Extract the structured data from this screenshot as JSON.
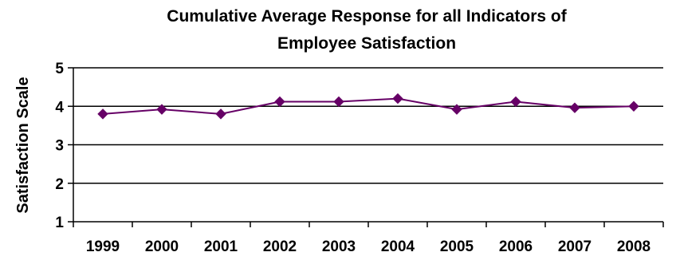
{
  "chart_data": {
    "type": "line",
    "title_lines": [
      "Cumulative Average Response for all Indicators of",
      "Employee Satisfaction"
    ],
    "xlabel": "",
    "ylabel": "Satisfaction Scale",
    "categories": [
      "1999",
      "2000",
      "2001",
      "2002",
      "2003",
      "2004",
      "2005",
      "2006",
      "2007",
      "2008"
    ],
    "series": [
      {
        "values": [
          3.8,
          3.92,
          3.8,
          4.12,
          4.12,
          4.2,
          3.92,
          4.12,
          3.96,
          4.0
        ]
      }
    ],
    "ylim": [
      1,
      5
    ],
    "yticks": [
      "1",
      "2",
      "3",
      "4",
      "5"
    ],
    "grid": true,
    "legend": "none",
    "colors": {
      "series": "#660066",
      "axis": "#000000",
      "grid": "#000000"
    }
  }
}
